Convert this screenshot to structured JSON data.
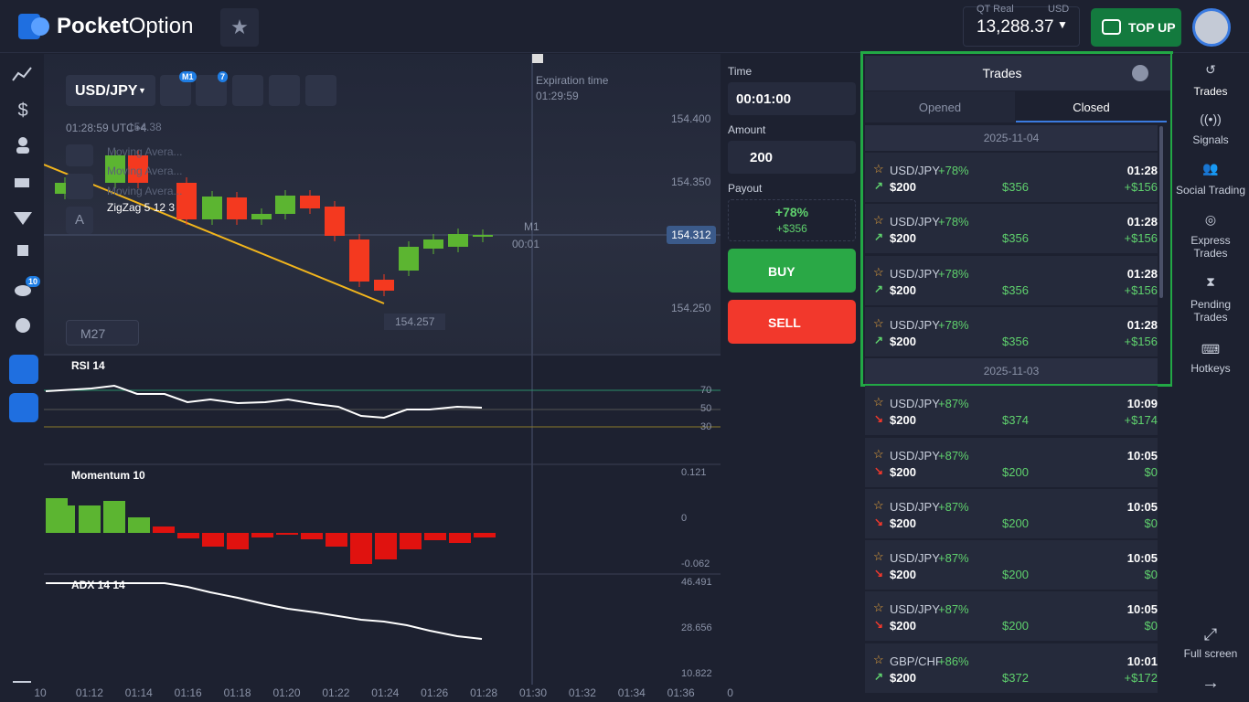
{
  "header": {
    "brand_bold": "Pocket",
    "brand_rest": "Option",
    "account_type": "QT Real",
    "currency": "USD",
    "balance": "13,288.37",
    "top_up": "TOP UP"
  },
  "sidebar": {
    "badges": [
      "10"
    ]
  },
  "chart": {
    "asset": "USD/JPY",
    "toolbar_badges": [
      "M1",
      "7"
    ],
    "clock": "01:28:59 UTC+4",
    "price_tag": "154.38",
    "indicators": [
      "Moving Avera...",
      "Moving Avera...",
      "Moving Avera...",
      "ZigZag 5 12 3"
    ],
    "drawing_label": "A",
    "timeframe": "M27",
    "expiration_label": "Expiration time",
    "expiration_time": "01:29:59",
    "price_labels": [
      "154.400",
      "154.350",
      "154.250"
    ],
    "current_price": "154.312",
    "low_price": "154.257",
    "candle_timeframe": "M1",
    "candle_timer": "00:01",
    "time_axis": [
      "10",
      "01:12",
      "01:14",
      "01:16",
      "01:18",
      "01:20",
      "01:22",
      "01:24",
      "01:26",
      "01:28",
      "01:30",
      "01:32",
      "01:34",
      "01:36",
      "0"
    ]
  },
  "indicators": {
    "rsi": {
      "name": "RSI 14",
      "levels": [
        "70",
        "50",
        "30"
      ]
    },
    "momentum": {
      "name": "Momentum 10",
      "levels": [
        "0.121",
        "0",
        "-0.062"
      ]
    },
    "adx": {
      "name": "ADX 14 14",
      "levels": [
        "46.491",
        "28.656",
        "10.822"
      ]
    }
  },
  "order": {
    "time_label": "Time",
    "time": "00:01:00",
    "amount_label": "Amount",
    "amount": "200",
    "payout_label": "Payout",
    "payout_percent": "+78%",
    "payout_amount": "+$356",
    "buy": "BUY",
    "sell": "SELL"
  },
  "trades": {
    "title": "Trades",
    "tabs": [
      "Opened",
      "Closed"
    ],
    "groups": [
      {
        "date": "2025-11-04",
        "items": [
          {
            "asset": "USD/JPY",
            "payout": "+78%",
            "amount": "$200",
            "return": "$356",
            "time": "01:28",
            "profit": "+$156",
            "direction": "up"
          },
          {
            "asset": "USD/JPY",
            "payout": "+78%",
            "amount": "$200",
            "return": "$356",
            "time": "01:28",
            "profit": "+$156",
            "direction": "up"
          },
          {
            "asset": "USD/JPY",
            "payout": "+78%",
            "amount": "$200",
            "return": "$356",
            "time": "01:28",
            "profit": "+$156",
            "direction": "up"
          },
          {
            "asset": "USD/JPY",
            "payout": "+78%",
            "amount": "$200",
            "return": "$356",
            "time": "01:28",
            "profit": "+$156",
            "direction": "up"
          }
        ]
      },
      {
        "date": "2025-11-03",
        "items": [
          {
            "asset": "USD/JPY",
            "payout": "+87%",
            "amount": "$200",
            "return": "$374",
            "time": "10:09",
            "profit": "+$174",
            "direction": "down"
          },
          {
            "asset": "USD/JPY",
            "payout": "+87%",
            "amount": "$200",
            "return": "$200",
            "time": "10:05",
            "profit": "$0",
            "direction": "down"
          },
          {
            "asset": "USD/JPY",
            "payout": "+87%",
            "amount": "$200",
            "return": "$200",
            "time": "10:05",
            "profit": "$0",
            "direction": "down"
          },
          {
            "asset": "USD/JPY",
            "payout": "+87%",
            "amount": "$200",
            "return": "$200",
            "time": "10:05",
            "profit": "$0",
            "direction": "down"
          },
          {
            "asset": "USD/JPY",
            "payout": "+87%",
            "amount": "$200",
            "return": "$200",
            "time": "10:05",
            "profit": "$0",
            "direction": "down"
          },
          {
            "asset": "GBP/CHF",
            "payout": "+86%",
            "amount": "$200",
            "return": "$372",
            "time": "10:01",
            "profit": "+$172",
            "direction": "up"
          }
        ]
      }
    ]
  },
  "nav": {
    "items": [
      "Trades",
      "Signals",
      "Social Trading",
      "Express Trades",
      "Pending Trades",
      "Hotkeys"
    ],
    "full_screen": "Full screen"
  }
}
